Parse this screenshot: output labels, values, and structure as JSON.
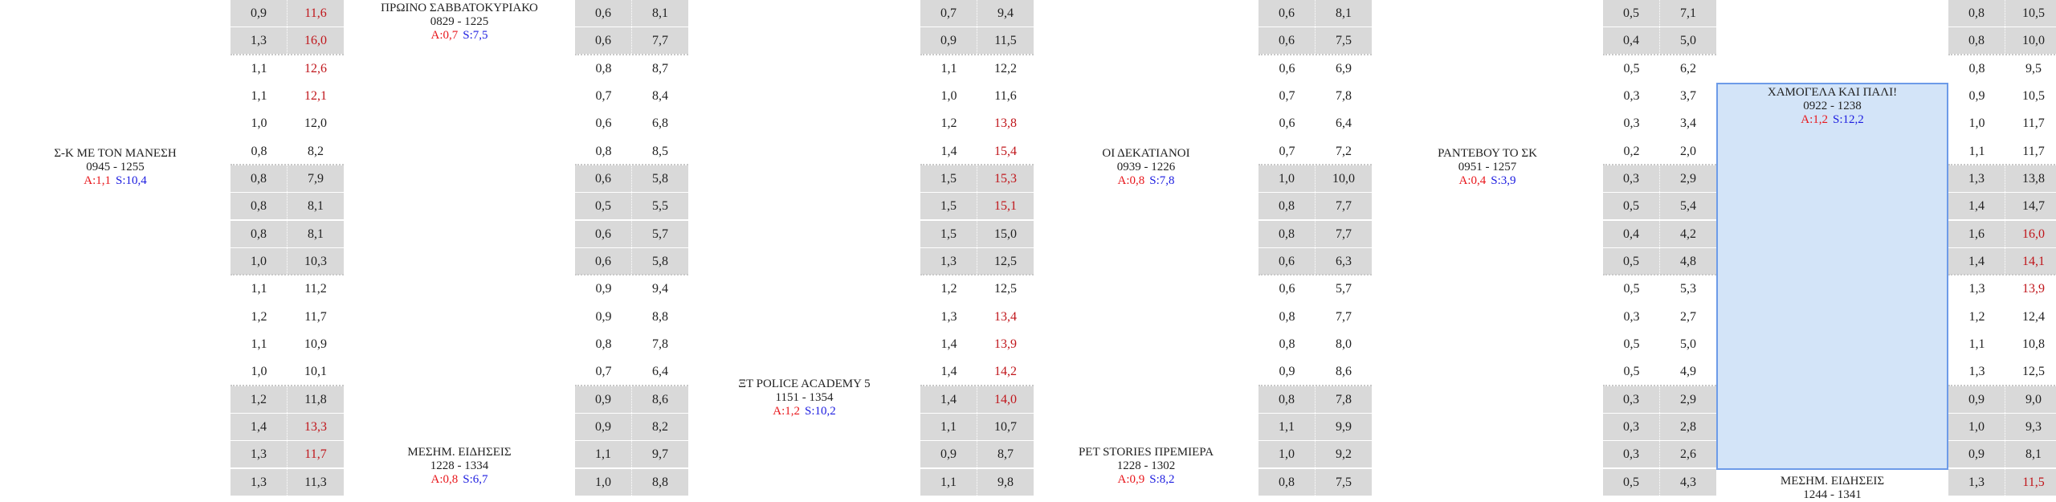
{
  "colors": {
    "highlight_value": "#c0161b",
    "audience_label": "#e8161b",
    "share_label": "#1c1ce0",
    "cell_bg": "#d9d9d9",
    "selected_bg": "#d3e4f8",
    "selected_border": "#6d9be8"
  },
  "programs": [
    {
      "title": "Σ-Κ ΜΕ ΤΟΝ ΜΑΝΕΣΗ",
      "time": "0945 - 1255",
      "a": "A:1,1",
      "s": "S:10,4"
    },
    {
      "title": "ΠΡΩΙΝΟ ΣΑΒΒΑΤΟΚΥΡΙΑΚΟ",
      "time": "0829 - 1225",
      "a": "A:0,7",
      "s": "S:7,5"
    },
    {
      "title": "ΜΕΣΗΜ. ΕΙΔΗΣΕΙΣ",
      "time": "1228 - 1334",
      "a": "A:0,8",
      "s": "S:6,7"
    },
    {
      "title": "ΞΤ POLICE ACADEMY 5",
      "time": "1151 - 1354",
      "a": "A:1,2",
      "s": "S:10,2"
    },
    {
      "title": "ΟΙ ΔΕΚΑΤΙΑΝΟΙ",
      "time": "0939 - 1226",
      "a": "A:0,8",
      "s": "S:7,8"
    },
    {
      "title": "PET STORIES ΠΡΕΜΙΕΡΑ",
      "time": "1228 - 1302",
      "a": "A:0,9",
      "s": "S:8,2"
    },
    {
      "title": "ΡΑΝΤΕΒΟΥ ΤΟ ΣΚ",
      "time": "0951 - 1257",
      "a": "A:0,4",
      "s": "S:3,9"
    },
    {
      "title": "ΧΑΜΟΓΕΛΑ ΚΑΙ ΠΑΛΙ!",
      "time": "0922 - 1238",
      "a": "A:1,2",
      "s": "S:12,2",
      "selected": true
    },
    {
      "title": "ΜΕΣΗΜ. ΕΙΔΗΣΕΙΣ",
      "time": "1244 - 1341"
    }
  ],
  "ratings_columns": [
    {
      "rows": [
        [
          "0,9",
          "11,6",
          1
        ],
        [
          "1,3",
          "16,0",
          1
        ],
        [
          "1,1",
          "12,6",
          1
        ],
        [
          "1,1",
          "12,1",
          1
        ],
        [
          "1,0",
          "12,0",
          0
        ],
        [
          "0,8",
          "8,2",
          0
        ],
        [
          "0,8",
          "7,9",
          0
        ],
        [
          "0,8",
          "8,1",
          0
        ],
        [
          "0,8",
          "8,1",
          0
        ],
        [
          "1,0",
          "10,3",
          0
        ],
        [
          "1,1",
          "11,2",
          0
        ],
        [
          "1,2",
          "11,7",
          0
        ],
        [
          "1,1",
          "10,9",
          0
        ],
        [
          "1,0",
          "10,1",
          0
        ],
        [
          "1,2",
          "11,8",
          0
        ],
        [
          "1,4",
          "13,3",
          1
        ],
        [
          "1,3",
          "11,7",
          1
        ],
        [
          "1,3",
          "11,3",
          0
        ]
      ]
    },
    {
      "rows": [
        [
          "0,6",
          "8,1",
          0
        ],
        [
          "0,6",
          "7,7",
          0
        ],
        [
          "0,8",
          "8,7",
          0
        ],
        [
          "0,7",
          "8,4",
          0
        ],
        [
          "0,6",
          "6,8",
          0
        ],
        [
          "0,8",
          "8,5",
          0
        ],
        [
          "0,6",
          "5,8",
          0
        ],
        [
          "0,5",
          "5,5",
          0
        ],
        [
          "0,6",
          "5,7",
          0
        ],
        [
          "0,6",
          "5,8",
          0
        ],
        [
          "0,9",
          "9,4",
          0
        ],
        [
          "0,9",
          "8,8",
          0
        ],
        [
          "0,8",
          "7,8",
          0
        ],
        [
          "0,7",
          "6,4",
          0
        ],
        [
          "0,9",
          "8,6",
          0
        ],
        [
          "0,9",
          "8,2",
          0
        ],
        [
          "1,1",
          "9,7",
          0
        ],
        [
          "1,0",
          "8,8",
          0
        ]
      ]
    },
    {
      "rows": [
        [
          "0,7",
          "9,4",
          0
        ],
        [
          "0,9",
          "11,5",
          0
        ],
        [
          "1,1",
          "12,2",
          0
        ],
        [
          "1,0",
          "11,6",
          0
        ],
        [
          "1,2",
          "13,8",
          1
        ],
        [
          "1,4",
          "15,4",
          1
        ],
        [
          "1,5",
          "15,3",
          1
        ],
        [
          "1,5",
          "15,1",
          1
        ],
        [
          "1,5",
          "15,0",
          0
        ],
        [
          "1,3",
          "12,5",
          0
        ],
        [
          "1,2",
          "12,5",
          0
        ],
        [
          "1,3",
          "13,4",
          1
        ],
        [
          "1,4",
          "13,9",
          1
        ],
        [
          "1,4",
          "14,2",
          1
        ],
        [
          "1,4",
          "14,0",
          1
        ],
        [
          "1,1",
          "10,7",
          0
        ],
        [
          "0,9",
          "8,7",
          0
        ],
        [
          "1,1",
          "9,8",
          0
        ]
      ]
    },
    {
      "rows": [
        [
          "0,6",
          "8,1",
          0
        ],
        [
          "0,6",
          "7,5",
          0
        ],
        [
          "0,6",
          "6,9",
          0
        ],
        [
          "0,7",
          "7,8",
          0
        ],
        [
          "0,6",
          "6,4",
          0
        ],
        [
          "0,7",
          "7,2",
          0
        ],
        [
          "1,0",
          "10,0",
          0
        ],
        [
          "0,8",
          "7,7",
          0
        ],
        [
          "0,8",
          "7,7",
          0
        ],
        [
          "0,6",
          "6,3",
          0
        ],
        [
          "0,6",
          "5,7",
          0
        ],
        [
          "0,8",
          "7,7",
          0
        ],
        [
          "0,8",
          "8,0",
          0
        ],
        [
          "0,9",
          "8,6",
          0
        ],
        [
          "0,8",
          "7,8",
          0
        ],
        [
          "1,1",
          "9,9",
          0
        ],
        [
          "1,0",
          "9,2",
          0
        ],
        [
          "0,8",
          "7,5",
          0
        ]
      ]
    },
    {
      "rows": [
        [
          "0,5",
          "7,1",
          0
        ],
        [
          "0,4",
          "5,0",
          0
        ],
        [
          "0,5",
          "6,2",
          0
        ],
        [
          "0,3",
          "3,7",
          0
        ],
        [
          "0,3",
          "3,4",
          0
        ],
        [
          "0,2",
          "2,0",
          0
        ],
        [
          "0,3",
          "2,9",
          0
        ],
        [
          "0,5",
          "5,4",
          0
        ],
        [
          "0,4",
          "4,2",
          0
        ],
        [
          "0,5",
          "4,8",
          0
        ],
        [
          "0,5",
          "5,3",
          0
        ],
        [
          "0,3",
          "2,7",
          0
        ],
        [
          "0,5",
          "5,0",
          0
        ],
        [
          "0,5",
          "4,9",
          0
        ],
        [
          "0,3",
          "2,9",
          0
        ],
        [
          "0,3",
          "2,8",
          0
        ],
        [
          "0,3",
          "2,6",
          0
        ],
        [
          "0,5",
          "4,3",
          0
        ]
      ]
    },
    {
      "rows": [
        [
          "0,8",
          "10,5",
          0
        ],
        [
          "0,8",
          "10,0",
          0
        ],
        [
          "0,8",
          "9,5",
          0
        ],
        [
          "0,9",
          "10,5",
          0
        ],
        [
          "1,0",
          "11,7",
          0
        ],
        [
          "1,1",
          "11,7",
          0
        ],
        [
          "1,3",
          "13,8",
          0
        ],
        [
          "1,4",
          "14,7",
          0
        ],
        [
          "1,6",
          "16,0",
          1
        ],
        [
          "1,4",
          "14,1",
          1
        ],
        [
          "1,3",
          "13,9",
          1
        ],
        [
          "1,2",
          "12,4",
          0
        ],
        [
          "1,1",
          "10,8",
          0
        ],
        [
          "1,3",
          "12,5",
          0
        ],
        [
          "0,9",
          "9,0",
          0
        ],
        [
          "1,0",
          "9,3",
          0
        ],
        [
          "0,9",
          "8,1",
          0
        ],
        [
          "1,3",
          "11,5",
          1
        ]
      ]
    }
  ]
}
